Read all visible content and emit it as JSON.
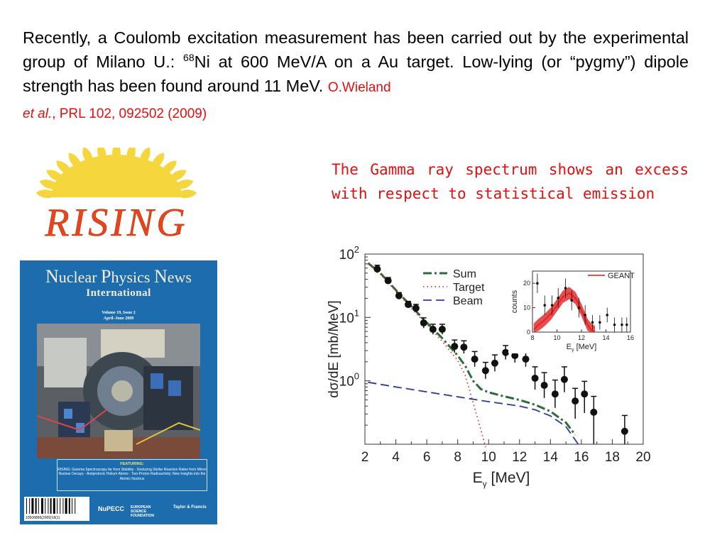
{
  "intro": {
    "text_before_sup": "Recently, a Coulomb excitation measurement has been carried out by the experimental group of Milano U.: ",
    "isotope_mass": "68",
    "text_after_sup": "Ni at 600 MeV/A on a Au target. Low-lying (or “pygmy”) dipole strength has been found around 11 MeV. ",
    "ref_author": "O.Wieland",
    "ref_etal": "et al.",
    "ref_journal": ", PRL 102, 092502 (2009)"
  },
  "note": "The Gamma ray spectrum shows an excess with respect to statistical emission",
  "logo": {
    "text": "RISING",
    "sun_color": "#f5d63c",
    "text_color": "#e8451c"
  },
  "cover": {
    "title_parts": [
      "N",
      "uclear ",
      "P",
      "hysics ",
      "N",
      "ews"
    ],
    "subtitle": "International",
    "volume": "Volume 19, Issue 2",
    "date": "April–June 2009",
    "featuring_label": "FEATURING:",
    "featuring_text": "RISING: Gamma Spectroscopy far from Stability · Deducing Stellar Reaction Rates from Mirror Nuclear Decays · Antiprotonic Helium Atoms · Two-Proton Radioactivity: New Insights into the Atomic Nucleus",
    "barcode_number": "10506896(2009)19(1)",
    "publisher_1": "NuPECC",
    "publisher_2": "EUROPEAN SCIENCE FOUNDATION",
    "publisher_3": "Taylor & Francis",
    "background_color": "#1d6cae"
  },
  "chart_data": [
    {
      "type": "scatter",
      "xlabel": "E",
      "xlabel_sub": "γ",
      "xlabel_unit": " [MeV]",
      "ylabel": "dσ/dE [mb/MeV]",
      "yscale": "log",
      "xlim": [
        2,
        20
      ],
      "ylim": [
        0.1,
        100
      ],
      "xticks": [
        2,
        4,
        6,
        8,
        10,
        12,
        14,
        16,
        18,
        20
      ],
      "yticks": [
        {
          "value": 1,
          "base": "10",
          "exp": "0"
        },
        {
          "value": 10,
          "base": "10",
          "exp": "1"
        },
        {
          "value": 100,
          "base": "10",
          "exp": "2"
        }
      ],
      "legend": {
        "position": "top-center",
        "entries": [
          "Sum",
          "Target",
          "Beam"
        ]
      },
      "points": [
        {
          "x": 2.8,
          "y": 58,
          "err": [
            0.06,
            0.06
          ]
        },
        {
          "x": 3.5,
          "y": 38,
          "err": [
            0.05,
            0.05
          ]
        },
        {
          "x": 4.2,
          "y": 22,
          "err": [
            0.05,
            0.05
          ]
        },
        {
          "x": 4.8,
          "y": 16,
          "err": [
            0.05,
            0.05
          ]
        },
        {
          "x": 5.3,
          "y": 14,
          "err": [
            0.06,
            0.06
          ]
        },
        {
          "x": 5.8,
          "y": 8.2,
          "err": [
            0.08,
            0.08
          ]
        },
        {
          "x": 6.4,
          "y": 6.5,
          "err": [
            0.08,
            0.08
          ]
        },
        {
          "x": 7.0,
          "y": 6.5,
          "err": [
            0.08,
            0.08
          ]
        },
        {
          "x": 7.8,
          "y": 3.5,
          "err": [
            0.1,
            0.1
          ]
        },
        {
          "x": 8.4,
          "y": 3.4,
          "err": [
            0.1,
            0.1
          ]
        },
        {
          "x": 9.1,
          "y": 2.2,
          "err": [
            0.12,
            0.12
          ]
        },
        {
          "x": 9.8,
          "y": 1.45,
          "err": [
            0.13,
            0.13
          ]
        },
        {
          "x": 10.4,
          "y": 1.9,
          "err": [
            0.13,
            0.13
          ]
        },
        {
          "x": 11.1,
          "y": 2.8,
          "err": [
            0.11,
            0.11
          ]
        },
        {
          "x": 11.7,
          "y": 2.5,
          "err": [
            0.11,
            0.11
          ]
        },
        {
          "x": 12.4,
          "y": 2.2,
          "err": [
            0.12,
            0.12
          ]
        },
        {
          "x": 13.0,
          "y": 1.1,
          "err": [
            0.18,
            0.18
          ]
        },
        {
          "x": 13.6,
          "y": 0.85,
          "err": [
            0.2,
            0.2
          ]
        },
        {
          "x": 14.3,
          "y": 0.62,
          "err": [
            0.22,
            0.22
          ]
        },
        {
          "x": 14.9,
          "y": 1.05,
          "err": [
            0.2,
            0.2
          ]
        },
        {
          "x": 15.6,
          "y": 0.48,
          "err": [
            0.28,
            0.2
          ]
        },
        {
          "x": 16.2,
          "y": 0.62,
          "err": [
            0.3,
            0.2
          ]
        },
        {
          "x": 16.8,
          "y": 0.32,
          "err": [
            0.5,
            0.25
          ]
        },
        {
          "x": 18.8,
          "y": 0.16,
          "err": [
            0.3,
            0.25
          ]
        }
      ],
      "series": [
        {
          "name": "Sum",
          "style": "dash-dot",
          "color": "#2e6b3c",
          "x": [
            2.2,
            3,
            4,
            5,
            6,
            7,
            8,
            8.5,
            9.0,
            9.5,
            10,
            11,
            12,
            13,
            14,
            15,
            15.6
          ],
          "y": [
            72,
            50,
            27,
            15,
            8.3,
            4.7,
            2.5,
            1.7,
            1.0,
            0.74,
            0.66,
            0.57,
            0.5,
            0.42,
            0.33,
            0.22,
            0.14
          ]
        },
        {
          "name": "Target",
          "style": "dotted",
          "color": "#e03030",
          "x": [
            2.2,
            3,
            4,
            5,
            6,
            7,
            8,
            8.5,
            9,
            9.5,
            9.8
          ],
          "y": [
            70,
            48,
            26,
            14,
            7.8,
            4.2,
            2.1,
            1.2,
            0.45,
            0.17,
            0.09
          ]
        },
        {
          "name": "Beam",
          "style": "dashed",
          "color": "#2b3b9a",
          "x": [
            2.2,
            4,
            6,
            8,
            10,
            12,
            13,
            14,
            15,
            15.8
          ],
          "y": [
            0.95,
            0.8,
            0.67,
            0.56,
            0.47,
            0.4,
            0.35,
            0.28,
            0.19,
            0.1
          ]
        }
      ]
    },
    {
      "type": "scatter",
      "position": "inset",
      "xlabel": "E",
      "xlabel_sub": "γ",
      "xlabel_unit": " [MeV]",
      "ylabel": "counts",
      "xlim": [
        8,
        16
      ],
      "ylim": [
        0,
        25
      ],
      "xticks": [
        8,
        10,
        12,
        14,
        16
      ],
      "yticks": [
        0,
        10,
        20
      ],
      "legend": {
        "position": "top-right",
        "entries": [
          "GEANT"
        ]
      },
      "points": [
        {
          "x": 8.4,
          "y": 20,
          "err": 4
        },
        {
          "x": 9.0,
          "y": 11,
          "err": 4
        },
        {
          "x": 9.6,
          "y": 11,
          "err": 4
        },
        {
          "x": 10.1,
          "y": 14,
          "err": 4
        },
        {
          "x": 10.7,
          "y": 18,
          "err": 4
        },
        {
          "x": 11.2,
          "y": 13,
          "err": 4
        },
        {
          "x": 11.8,
          "y": 10,
          "err": 4
        },
        {
          "x": 12.3,
          "y": 7,
          "err": 4
        },
        {
          "x": 12.9,
          "y": 4,
          "err": 3
        },
        {
          "x": 13.5,
          "y": 4,
          "err": 3
        },
        {
          "x": 14.1,
          "y": 7,
          "err": 3
        },
        {
          "x": 14.7,
          "y": 3,
          "err": 3
        },
        {
          "x": 15.3,
          "y": 3,
          "err": 3
        },
        {
          "x": 15.7,
          "y": 3,
          "err": 3
        }
      ],
      "series": [
        {
          "name": "GEANT",
          "color": "#e01010",
          "x": [
            8.1,
            8.5,
            9,
            9.5,
            10,
            10.5,
            11,
            11.5,
            12,
            12.5,
            12.8,
            13.1
          ],
          "y": [
            1,
            3,
            5,
            7.5,
            11,
            14.5,
            16,
            14,
            9,
            3,
            1,
            0
          ]
        }
      ]
    }
  ]
}
